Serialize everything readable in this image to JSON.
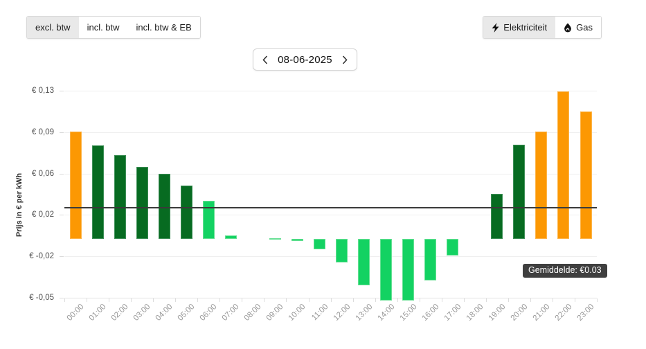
{
  "header": {
    "vat_tabs": [
      {
        "label": "excl. btw",
        "selected": true
      },
      {
        "label": "incl. btw",
        "selected": false
      },
      {
        "label": "incl. btw & EB",
        "selected": false
      }
    ],
    "energy_tabs": [
      {
        "label": "Elektriciteit",
        "icon": "bolt-icon",
        "selected": true
      },
      {
        "label": "Gas",
        "icon": "flame-icon",
        "selected": false
      }
    ],
    "date_nav": {
      "date": "08-06-2025",
      "prev_icon": "chevron-left-icon",
      "next_icon": "chevron-right-icon"
    }
  },
  "chart_data": {
    "type": "bar",
    "title": "",
    "ylabel": "Prijs in € per kWh",
    "xlabel": "",
    "categories": [
      "00:00",
      "01:00",
      "02:00",
      "03:00",
      "04:00",
      "05:00",
      "06:00",
      "07:00",
      "08:00",
      "09:00",
      "10:00",
      "11:00",
      "12:00",
      "13:00",
      "14:00",
      "15:00",
      "16:00",
      "17:00",
      "18:00",
      "19:00",
      "20:00",
      "21:00",
      "22:00",
      "23:00"
    ],
    "values": [
      0.091,
      0.079,
      0.071,
      0.061,
      0.055,
      0.045,
      0.032,
      0.003,
      0.0,
      0.0005,
      -0.002,
      -0.009,
      -0.02,
      -0.039,
      -0.052,
      -0.052,
      -0.035,
      -0.014,
      0.0,
      0.038,
      0.08,
      0.091,
      0.125,
      0.108
    ],
    "bar_colors": [
      "orange",
      "dark-green",
      "dark-green",
      "dark-green",
      "dark-green",
      "dark-green",
      "light-green",
      "light-green",
      "light-green",
      "light-green",
      "light-green",
      "light-green",
      "light-green",
      "light-green",
      "light-green",
      "light-green",
      "light-green",
      "light-green",
      "light-green",
      "dark-green",
      "dark-green",
      "orange",
      "orange",
      "orange"
    ],
    "palette": {
      "orange": {
        "fill": "#FC9803",
        "border": "#FDB54A"
      },
      "dark-green": {
        "fill": "#076B21",
        "border": "#3E8F57"
      },
      "light-green": {
        "fill": "#13D262",
        "border": "#67E094"
      }
    },
    "y_ticks": [
      {
        "value": 0.125,
        "label": "€ 0,13"
      },
      {
        "value": 0.09,
        "label": "€ 0,09"
      },
      {
        "value": 0.055,
        "label": "€ 0,06"
      },
      {
        "value": 0.02,
        "label": "€ 0,02"
      },
      {
        "value": -0.015,
        "label": "€ -0,02"
      },
      {
        "value": -0.05,
        "label": "€ -0,05"
      }
    ],
    "ylim": [
      -0.055,
      0.132
    ],
    "grid": true,
    "legend": false,
    "average_line": {
      "value": 0.0265,
      "label": "Gemiddelde: €0.03"
    }
  }
}
